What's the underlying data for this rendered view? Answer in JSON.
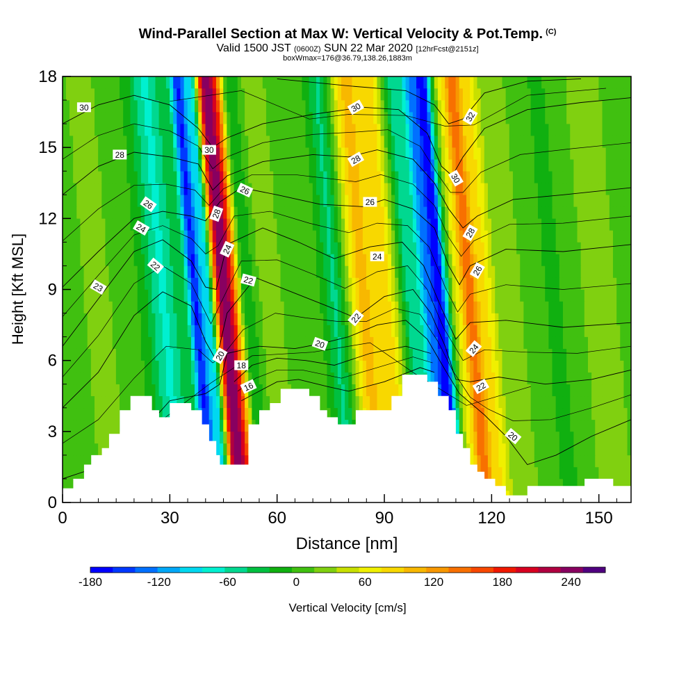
{
  "header": {
    "title": "Wind-Parallel Section at Max W: Vertical Velocity & Pot.Temp.",
    "title_mark": "(C)",
    "valid_prefix": "Valid 1500 JST",
    "valid_utc": "(0600Z)",
    "valid_date": "SUN 22 Mar 2020",
    "forecast": "[12hrFcst@2151z]",
    "box_info": "boxWmax=176@36.79,138.26,1883m"
  },
  "chart_data": {
    "type": "heatmap",
    "xlabel": "Distance [nm]",
    "ylabel": "Height [Kft MSL]",
    "xlim": [
      0,
      159
    ],
    "ylim": [
      0,
      18
    ],
    "x_ticks": [
      0,
      30,
      60,
      90,
      120,
      150
    ],
    "y_ticks": [
      0,
      3,
      6,
      9,
      12,
      15,
      18
    ],
    "colorbar": {
      "label": "Vertical Velocity [cm/s]",
      "min": -180,
      "max": 270,
      "step": 20,
      "tick_values": [
        -180,
        -120,
        -60,
        0,
        60,
        120,
        180,
        240
      ],
      "tick_labels": [
        "-180",
        "-120",
        "-60",
        "0",
        "60",
        "120",
        "180",
        "240"
      ],
      "colors": [
        "#0000ff",
        "#0038ff",
        "#0070ff",
        "#00a8f8",
        "#00d8f0",
        "#00f0d0",
        "#00d890",
        "#00c040",
        "#10b010",
        "#40c010",
        "#80d010",
        "#c8e000",
        "#f0f000",
        "#f8d800",
        "#f8b800",
        "#f89800",
        "#f87000",
        "#f84800",
        "#f01800",
        "#d80020",
        "#b00040",
        "#880060",
        "#500080"
      ]
    },
    "vertical_velocity_bands": [
      {
        "x": 10,
        "w": 5,
        "v": 15
      },
      {
        "x": 17,
        "w": 3,
        "v": -10
      },
      {
        "x": 28,
        "w": 5,
        "v": -75
      },
      {
        "x": 37,
        "w": 2.2,
        "v": -170
      },
      {
        "x": 40.5,
        "w": 1.6,
        "v": -90
      },
      {
        "x": 43.5,
        "w": 1.6,
        "v": 100
      },
      {
        "x": 45.5,
        "w": 2.2,
        "v": 210
      },
      {
        "x": 48,
        "w": 1.8,
        "v": 90
      },
      {
        "x": 51.5,
        "w": 2.5,
        "v": -30
      },
      {
        "x": 58,
        "w": 4,
        "v": 20
      },
      {
        "x": 67,
        "w": 5,
        "v": -10
      },
      {
        "x": 76,
        "w": 3,
        "v": -55
      },
      {
        "x": 84,
        "w": 4,
        "v": 95
      },
      {
        "x": 90.5,
        "w": 3,
        "v": 70
      },
      {
        "x": 97,
        "w": 2.5,
        "v": -60
      },
      {
        "x": 102,
        "w": 2.5,
        "v": -130
      },
      {
        "x": 105.5,
        "w": 2,
        "v": -175
      },
      {
        "x": 110,
        "w": 1.6,
        "v": 30
      },
      {
        "x": 113.5,
        "w": 2.5,
        "v": 135
      },
      {
        "x": 118,
        "w": 3,
        "v": 65
      },
      {
        "x": 126,
        "w": 6,
        "v": 10
      },
      {
        "x": 137,
        "w": 5,
        "v": -15
      },
      {
        "x": 150,
        "w": 5,
        "v": 20
      }
    ],
    "terrain_profile": [
      [
        0,
        0.6
      ],
      [
        3,
        1.0
      ],
      [
        6,
        1.6
      ],
      [
        8,
        2.0
      ],
      [
        11,
        2.3
      ],
      [
        13,
        2.9
      ],
      [
        16,
        3.9
      ],
      [
        19,
        4.5
      ],
      [
        22,
        4.5
      ],
      [
        25,
        3.9
      ],
      [
        27,
        3.6
      ],
      [
        30,
        4.2
      ],
      [
        33,
        4.2
      ],
      [
        36,
        3.9
      ],
      [
        39,
        3.3
      ],
      [
        41,
        2.6
      ],
      [
        43,
        2.0
      ],
      [
        44,
        1.6
      ],
      [
        50,
        1.6
      ],
      [
        52,
        3.3
      ],
      [
        55,
        3.9
      ],
      [
        58,
        4.2
      ],
      [
        61,
        4.8
      ],
      [
        66,
        4.8
      ],
      [
        69,
        4.5
      ],
      [
        72,
        3.9
      ],
      [
        74,
        3.6
      ],
      [
        77,
        3.3
      ],
      [
        80,
        3.3
      ],
      [
        82,
        3.9
      ],
      [
        86,
        3.9
      ],
      [
        89,
        3.9
      ],
      [
        92,
        4.5
      ],
      [
        95,
        5.4
      ],
      [
        100,
        5.4
      ],
      [
        102,
        5.1
      ],
      [
        105,
        4.5
      ],
      [
        108,
        3.9
      ],
      [
        110,
        2.9
      ],
      [
        112,
        2.3
      ],
      [
        114,
        1.6
      ],
      [
        116,
        1.3
      ],
      [
        118,
        1.0
      ],
      [
        121,
        0.7
      ],
      [
        124,
        0.3
      ],
      [
        127,
        0.3
      ],
      [
        130,
        0.7
      ],
      [
        136,
        0.7
      ],
      [
        142,
        0.7
      ],
      [
        146,
        1.0
      ],
      [
        151,
        1.0
      ],
      [
        154,
        0.7
      ],
      [
        159,
        0.7
      ]
    ],
    "theta_contours": [
      {
        "value": 16,
        "points": [
          [
            50,
            4.3
          ],
          [
            55,
            4.7
          ],
          [
            60,
            5.1
          ],
          [
            66,
            5.2
          ],
          [
            74,
            4.9
          ],
          [
            80,
            4.7
          ],
          [
            90,
            5.1
          ],
          [
            100,
            5.7
          ],
          [
            104,
            5.5
          ]
        ]
      },
      {
        "value": 18,
        "points": [
          [
            48,
            5.1
          ],
          [
            53,
            5.8
          ],
          [
            60,
            6.1
          ],
          [
            68,
            6.0
          ],
          [
            76,
            5.8
          ],
          [
            86,
            6.3
          ],
          [
            96,
            6.6
          ],
          [
            103,
            6.3
          ]
        ]
      },
      {
        "value": 20,
        "points": [
          [
            0,
            1.0
          ],
          [
            10,
            1.5
          ],
          [
            20,
            2.6
          ],
          [
            30,
            4.3
          ],
          [
            40,
            4.6
          ],
          [
            44,
            5.0
          ],
          [
            46,
            6.3
          ],
          [
            55,
            6.6
          ],
          [
            65,
            6.5
          ],
          [
            72,
            6.7
          ],
          [
            80,
            7.0
          ],
          [
            88,
            7.5
          ],
          [
            96,
            7.7
          ],
          [
            102,
            6.9
          ],
          [
            107,
            5.6
          ],
          [
            111,
            4.6
          ],
          [
            118,
            3.7
          ],
          [
            124,
            2.8
          ],
          [
            130,
            1.6
          ],
          [
            138,
            2.0
          ],
          [
            148,
            2.8
          ],
          [
            159,
            3.5
          ]
        ]
      },
      {
        "value": 22,
        "points": [
          [
            0,
            4.0
          ],
          [
            10,
            5.5
          ],
          [
            20,
            7.9
          ],
          [
            28,
            8.9
          ],
          [
            36,
            8.3
          ],
          [
            40,
            6.8
          ],
          [
            43,
            6.0
          ],
          [
            46,
            8.0
          ],
          [
            54,
            9.5
          ],
          [
            64,
            8.9
          ],
          [
            74,
            8.3
          ],
          [
            82,
            7.8
          ],
          [
            90,
            8.7
          ],
          [
            98,
            9.0
          ],
          [
            103,
            8.0
          ],
          [
            107,
            6.6
          ],
          [
            110,
            5.2
          ],
          [
            114,
            5.1
          ],
          [
            122,
            5.3
          ],
          [
            135,
            5.0
          ],
          [
            148,
            5.2
          ],
          [
            159,
            5.6
          ]
        ]
      },
      {
        "value": 24,
        "points": [
          [
            0,
            6.6
          ],
          [
            10,
            8.6
          ],
          [
            20,
            10.6
          ],
          [
            28,
            11.1
          ],
          [
            36,
            10.2
          ],
          [
            40,
            9.1
          ],
          [
            43,
            9.0
          ],
          [
            46,
            10.9
          ],
          [
            56,
            11.6
          ],
          [
            66,
            11.0
          ],
          [
            76,
            10.3
          ],
          [
            86,
            10.8
          ],
          [
            95,
            11.0
          ],
          [
            101,
            10.0
          ],
          [
            106,
            8.2
          ],
          [
            110,
            6.9
          ],
          [
            114,
            7.6
          ],
          [
            124,
            7.7
          ],
          [
            140,
            7.4
          ],
          [
            159,
            7.6
          ]
        ]
      },
      {
        "value": 26,
        "points": [
          [
            0,
            9.1
          ],
          [
            10,
            10.6
          ],
          [
            20,
            12.0
          ],
          [
            28,
            12.3
          ],
          [
            36,
            12.1
          ],
          [
            40,
            11.9
          ],
          [
            44,
            12.7
          ],
          [
            50,
            13.3
          ],
          [
            60,
            13.0
          ],
          [
            72,
            12.6
          ],
          [
            84,
            12.5
          ],
          [
            90,
            12.8
          ],
          [
            98,
            12.4
          ],
          [
            104,
            11.6
          ],
          [
            108,
            10.0
          ],
          [
            111,
            9.2
          ],
          [
            114,
            10.0
          ],
          [
            124,
            10.7
          ],
          [
            140,
            10.6
          ],
          [
            159,
            10.9
          ]
        ]
      },
      {
        "value": 28,
        "points": [
          [
            0,
            13.0
          ],
          [
            10,
            14.2
          ],
          [
            20,
            14.8
          ],
          [
            30,
            14.6
          ],
          [
            38,
            14.3
          ],
          [
            42,
            13.2
          ],
          [
            46,
            13.8
          ],
          [
            56,
            14.4
          ],
          [
            70,
            14.7
          ],
          [
            80,
            14.6
          ],
          [
            88,
            14.9
          ],
          [
            98,
            14.5
          ],
          [
            104,
            13.5
          ],
          [
            108,
            12.4
          ],
          [
            112,
            11.6
          ],
          [
            116,
            12.1
          ],
          [
            126,
            12.8
          ],
          [
            140,
            13.0
          ],
          [
            159,
            13.3
          ]
        ]
      },
      {
        "value": 30,
        "points": [
          [
            0,
            16.0
          ],
          [
            10,
            16.8
          ],
          [
            20,
            17.2
          ],
          [
            30,
            16.8
          ],
          [
            38,
            15.8
          ],
          [
            42,
            15.0
          ],
          [
            46,
            15.4
          ],
          [
            56,
            16.0
          ],
          [
            70,
            16.4
          ],
          [
            84,
            16.7
          ],
          [
            94,
            16.6
          ],
          [
            102,
            15.6
          ],
          [
            106,
            14.2
          ],
          [
            109,
            13.8
          ],
          [
            112,
            14.6
          ],
          [
            118,
            15.8
          ],
          [
            130,
            16.6
          ],
          [
            145,
            16.9
          ],
          [
            159,
            17.1
          ]
        ]
      },
      {
        "value": 32,
        "points": [
          [
            60,
            17.9
          ],
          [
            80,
            17.6
          ],
          [
            96,
            17.4
          ],
          [
            104,
            16.8
          ],
          [
            108,
            16.0
          ],
          [
            112,
            16.2
          ],
          [
            118,
            17.3
          ],
          [
            130,
            17.8
          ],
          [
            145,
            17.9
          ]
        ]
      }
    ],
    "contour_labels": [
      {
        "text": "30",
        "x": 6,
        "y": 16.7,
        "angle": 0
      },
      {
        "text": "28",
        "x": 16,
        "y": 14.7,
        "angle": 0
      },
      {
        "text": "26",
        "x": 24,
        "y": 12.6,
        "angle": 35
      },
      {
        "text": "24",
        "x": 22,
        "y": 11.6,
        "angle": 30
      },
      {
        "text": "22",
        "x": 26,
        "y": 10.0,
        "angle": 40
      },
      {
        "text": "23",
        "x": 10,
        "y": 9.1,
        "angle": 30
      },
      {
        "text": "30",
        "x": 41,
        "y": 14.9,
        "angle": 0
      },
      {
        "text": "28",
        "x": 43,
        "y": 12.2,
        "angle": -70
      },
      {
        "text": "26",
        "x": 51,
        "y": 13.2,
        "angle": 25
      },
      {
        "text": "24",
        "x": 46,
        "y": 10.7,
        "angle": -65
      },
      {
        "text": "22",
        "x": 52,
        "y": 9.4,
        "angle": 15
      },
      {
        "text": "20",
        "x": 44,
        "y": 6.2,
        "angle": -60
      },
      {
        "text": "18",
        "x": 50,
        "y": 5.8,
        "angle": 0
      },
      {
        "text": "16",
        "x": 52,
        "y": 4.9,
        "angle": -25
      },
      {
        "text": "30",
        "x": 82,
        "y": 16.7,
        "angle": -30
      },
      {
        "text": "28",
        "x": 82,
        "y": 14.5,
        "angle": -30
      },
      {
        "text": "26",
        "x": 86,
        "y": 12.7,
        "angle": 0
      },
      {
        "text": "24",
        "x": 88,
        "y": 10.4,
        "angle": 0
      },
      {
        "text": "22",
        "x": 82,
        "y": 7.8,
        "angle": -50
      },
      {
        "text": "20",
        "x": 72,
        "y": 6.7,
        "angle": 20
      },
      {
        "text": "32",
        "x": 114,
        "y": 16.3,
        "angle": -60
      },
      {
        "text": "30",
        "x": 110,
        "y": 13.7,
        "angle": 60
      },
      {
        "text": "28",
        "x": 114,
        "y": 11.4,
        "angle": -60
      },
      {
        "text": "26",
        "x": 116,
        "y": 9.8,
        "angle": -60
      },
      {
        "text": "24",
        "x": 115,
        "y": 6.5,
        "angle": -50
      },
      {
        "text": "22",
        "x": 117,
        "y": 4.9,
        "angle": -30
      },
      {
        "text": "20",
        "x": 126,
        "y": 2.8,
        "angle": 40
      }
    ]
  }
}
